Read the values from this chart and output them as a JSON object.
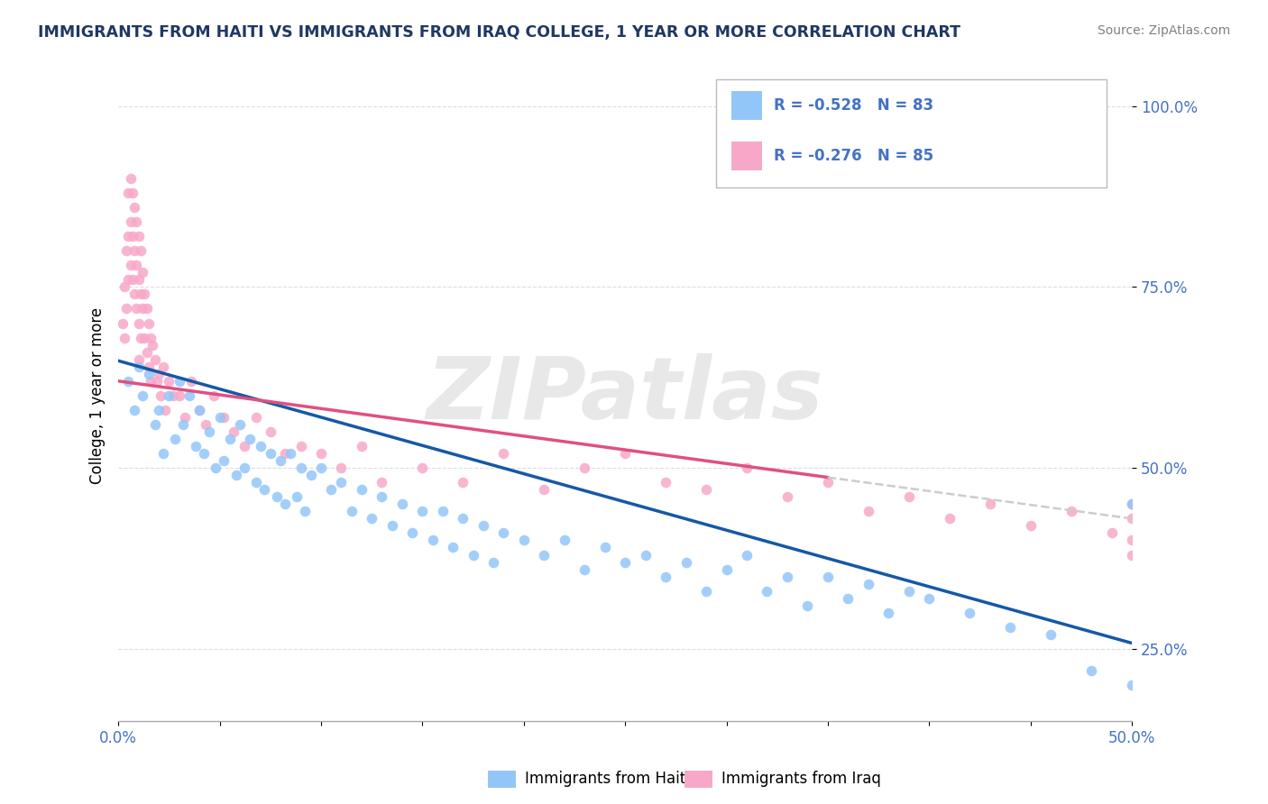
{
  "title": "IMMIGRANTS FROM HAITI VS IMMIGRANTS FROM IRAQ COLLEGE, 1 YEAR OR MORE CORRELATION CHART",
  "source": "Source: ZipAtlas.com",
  "ylabel": "College, 1 year or more",
  "xlim": [
    0.0,
    0.5
  ],
  "ylim": [
    0.15,
    1.05
  ],
  "ytick_vals": [
    0.25,
    0.5,
    0.75,
    1.0
  ],
  "ytick_labels": [
    "25.0%",
    "50.0%",
    "75.0%",
    "100.0%"
  ],
  "xtick_vals": [
    0.0,
    0.05,
    0.1,
    0.15,
    0.2,
    0.25,
    0.3,
    0.35,
    0.4,
    0.45,
    0.5
  ],
  "xtick_labels": [
    "0.0%",
    "",
    "",
    "",
    "",
    "",
    "",
    "",
    "",
    "",
    "50.0%"
  ],
  "haiti_color": "#93C6F8",
  "iraq_color": "#F7A8C8",
  "haiti_line_color": "#1558A7",
  "iraq_line_color": "#E05080",
  "iraq_dash_color": "#CCCCCC",
  "legend_haiti_label": "R = -0.528   N = 83",
  "legend_iraq_label": "R = -0.276   N = 85",
  "text_blue": "#4472C4",
  "watermark": "ZIPatlas",
  "bottom_legend_haiti": "Immigrants from Haiti",
  "bottom_legend_iraq": "Immigrants from Iraq",
  "title_color": "#1F3864",
  "haiti_scatter_x": [
    0.005,
    0.008,
    0.01,
    0.012,
    0.015,
    0.018,
    0.02,
    0.022,
    0.025,
    0.028,
    0.03,
    0.032,
    0.035,
    0.038,
    0.04,
    0.042,
    0.045,
    0.048,
    0.05,
    0.052,
    0.055,
    0.058,
    0.06,
    0.062,
    0.065,
    0.068,
    0.07,
    0.072,
    0.075,
    0.078,
    0.08,
    0.082,
    0.085,
    0.088,
    0.09,
    0.092,
    0.095,
    0.1,
    0.105,
    0.11,
    0.115,
    0.12,
    0.125,
    0.13,
    0.135,
    0.14,
    0.145,
    0.15,
    0.155,
    0.16,
    0.165,
    0.17,
    0.175,
    0.18,
    0.185,
    0.19,
    0.2,
    0.21,
    0.22,
    0.23,
    0.24,
    0.25,
    0.26,
    0.27,
    0.28,
    0.29,
    0.3,
    0.31,
    0.32,
    0.33,
    0.34,
    0.35,
    0.36,
    0.37,
    0.38,
    0.39,
    0.4,
    0.42,
    0.44,
    0.46,
    0.48,
    0.5,
    0.5
  ],
  "haiti_scatter_y": [
    0.62,
    0.58,
    0.64,
    0.6,
    0.63,
    0.56,
    0.58,
    0.52,
    0.6,
    0.54,
    0.62,
    0.56,
    0.6,
    0.53,
    0.58,
    0.52,
    0.55,
    0.5,
    0.57,
    0.51,
    0.54,
    0.49,
    0.56,
    0.5,
    0.54,
    0.48,
    0.53,
    0.47,
    0.52,
    0.46,
    0.51,
    0.45,
    0.52,
    0.46,
    0.5,
    0.44,
    0.49,
    0.5,
    0.47,
    0.48,
    0.44,
    0.47,
    0.43,
    0.46,
    0.42,
    0.45,
    0.41,
    0.44,
    0.4,
    0.44,
    0.39,
    0.43,
    0.38,
    0.42,
    0.37,
    0.41,
    0.4,
    0.38,
    0.4,
    0.36,
    0.39,
    0.37,
    0.38,
    0.35,
    0.37,
    0.33,
    0.36,
    0.38,
    0.33,
    0.35,
    0.31,
    0.35,
    0.32,
    0.34,
    0.3,
    0.33,
    0.32,
    0.3,
    0.28,
    0.27,
    0.22,
    0.2,
    0.45
  ],
  "iraq_scatter_x": [
    0.002,
    0.003,
    0.003,
    0.004,
    0.004,
    0.005,
    0.005,
    0.005,
    0.006,
    0.006,
    0.006,
    0.007,
    0.007,
    0.007,
    0.008,
    0.008,
    0.008,
    0.009,
    0.009,
    0.009,
    0.01,
    0.01,
    0.01,
    0.01,
    0.011,
    0.011,
    0.011,
    0.012,
    0.012,
    0.013,
    0.013,
    0.014,
    0.014,
    0.015,
    0.015,
    0.016,
    0.016,
    0.017,
    0.018,
    0.019,
    0.02,
    0.021,
    0.022,
    0.023,
    0.025,
    0.027,
    0.03,
    0.033,
    0.036,
    0.04,
    0.043,
    0.047,
    0.052,
    0.057,
    0.062,
    0.068,
    0.075,
    0.082,
    0.09,
    0.1,
    0.11,
    0.12,
    0.13,
    0.15,
    0.17,
    0.19,
    0.21,
    0.23,
    0.25,
    0.27,
    0.29,
    0.31,
    0.33,
    0.35,
    0.37,
    0.39,
    0.41,
    0.43,
    0.45,
    0.47,
    0.49,
    0.5,
    0.5,
    0.5,
    0.5
  ],
  "iraq_scatter_y": [
    0.7,
    0.75,
    0.68,
    0.8,
    0.72,
    0.88,
    0.82,
    0.76,
    0.9,
    0.84,
    0.78,
    0.88,
    0.82,
    0.76,
    0.86,
    0.8,
    0.74,
    0.84,
    0.78,
    0.72,
    0.82,
    0.76,
    0.7,
    0.65,
    0.8,
    0.74,
    0.68,
    0.77,
    0.72,
    0.74,
    0.68,
    0.72,
    0.66,
    0.7,
    0.64,
    0.68,
    0.62,
    0.67,
    0.65,
    0.62,
    0.63,
    0.6,
    0.64,
    0.58,
    0.62,
    0.6,
    0.6,
    0.57,
    0.62,
    0.58,
    0.56,
    0.6,
    0.57,
    0.55,
    0.53,
    0.57,
    0.55,
    0.52,
    0.53,
    0.52,
    0.5,
    0.53,
    0.48,
    0.5,
    0.48,
    0.52,
    0.47,
    0.5,
    0.52,
    0.48,
    0.47,
    0.5,
    0.46,
    0.48,
    0.44,
    0.46,
    0.43,
    0.45,
    0.42,
    0.44,
    0.41,
    0.43,
    0.4,
    0.45,
    0.38
  ],
  "haiti_trend_x0": 0.0,
  "haiti_trend_y0": 0.648,
  "haiti_trend_x1": 0.5,
  "haiti_trend_y1": 0.258,
  "iraq_trend_x0": 0.0,
  "iraq_trend_y0": 0.62,
  "iraq_trend_x1": 0.5,
  "iraq_trend_y1": 0.43
}
